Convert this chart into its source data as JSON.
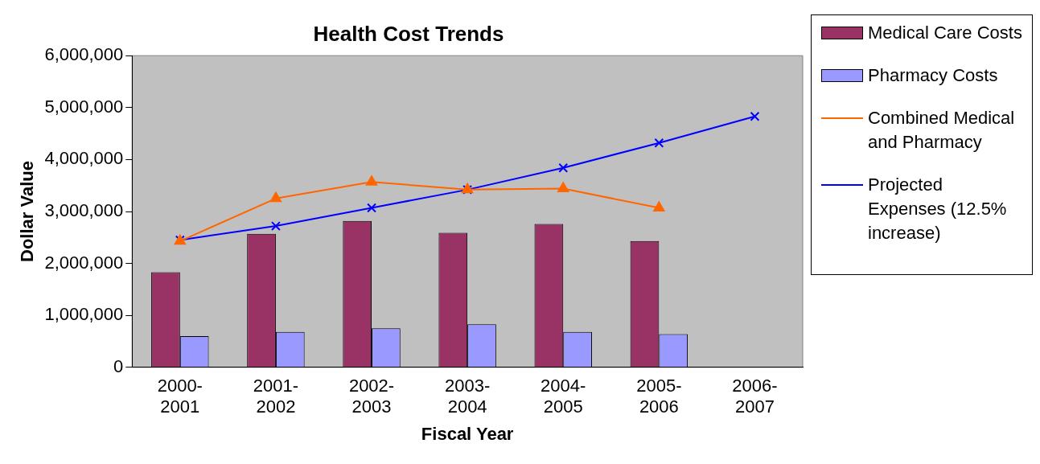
{
  "chart_data": {
    "type": "bar",
    "title": "Health Cost Trends",
    "xlabel": "Fiscal Year",
    "ylabel": "Dollar Value",
    "categories": [
      "2000-2001",
      "2001-2002",
      "2002-2003",
      "2003-2004",
      "2004-2005",
      "2005-2006",
      "2006-2007"
    ],
    "series": [
      {
        "name": "Medical Care Costs",
        "color": "#993366",
        "values": [
          1830000,
          2570000,
          2820000,
          2590000,
          2760000,
          2430000,
          null
        ]
      },
      {
        "name": "Pharmacy Costs",
        "color": "#9999ff",
        "values": [
          600000,
          680000,
          750000,
          830000,
          680000,
          640000,
          null
        ]
      },
      {
        "name": "Combined Medical and Pharmacy",
        "type": "line",
        "marker": "triangle",
        "color": "#ff6600",
        "values": [
          2430000,
          3250000,
          3570000,
          3420000,
          3440000,
          3070000,
          null
        ]
      },
      {
        "name": "Projected Expenses (12.5% increase)",
        "type": "line",
        "marker": "cross",
        "color": "#0000ff",
        "values": [
          2450000,
          2720000,
          3070000,
          3420000,
          3840000,
          4320000,
          4830000
        ]
      }
    ],
    "ylim": [
      0,
      6000000
    ],
    "yticks": [
      0,
      {
        "value": 1000000,
        "label": "1,000,000"
      },
      {
        "value": 2000000,
        "label": "2,000,000"
      },
      {
        "value": 3000000,
        "label": "3,000,000"
      },
      {
        "value": 4000000,
        "label": "4,000,000"
      },
      {
        "value": 5000000,
        "label": "5,000,000"
      },
      {
        "value": 6000000,
        "label": "6,000,000"
      }
    ],
    "grid": false,
    "legend": "right"
  }
}
